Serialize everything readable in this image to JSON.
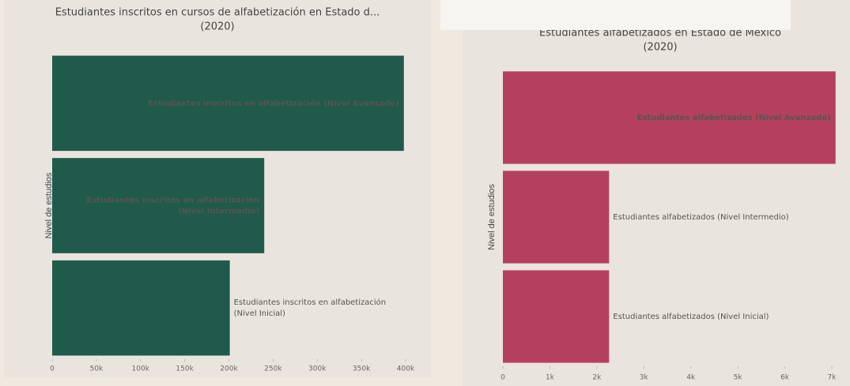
{
  "chart_data": [
    {
      "type": "bar",
      "orientation": "horizontal",
      "title": "Estudiantes inscritos en cursos de alfabetización en Estado d...",
      "subtitle": "(2020)",
      "ylabel": "Nivel de estudios",
      "categories": [
        "Estudiantes inscritos en alfabetización (Nivel Avanzado)",
        "Estudiantes inscritos en alfabetización (Nivel Intermedio)",
        "Estudiantes inscritos en alfabetización (Nivel Inicial)"
      ],
      "values": [
        398000,
        240000,
        201000
      ],
      "color": "#1f5a4a",
      "xlim": [
        0,
        400000
      ],
      "xticks": [
        0,
        {
          "value": 50000,
          "label": "50k"
        },
        {
          "value": 100000,
          "label": "100k"
        },
        {
          "value": 150000,
          "label": "150k"
        },
        {
          "value": 200000,
          "label": "200k"
        },
        {
          "value": 250000,
          "label": "250k"
        },
        {
          "value": 300000,
          "label": "300k"
        },
        {
          "value": 350000,
          "label": "350k"
        },
        {
          "value": 400000,
          "label": "400k"
        }
      ]
    },
    {
      "type": "bar",
      "orientation": "horizontal",
      "title": "Estudiantes alfabetizados en Estado de México",
      "subtitle": "(2020)",
      "ylabel": "Nivel de estudios",
      "categories": [
        "Estudiantes alfabetizados (Nivel Avanzado)",
        "Estudiantes alfabetizados (Nivel Intermedio)",
        "Estudiantes alfabetizados (Nivel Inicial)"
      ],
      "values": [
        7080,
        2260,
        2260
      ],
      "color": "#b5405e",
      "xlim": [
        0,
        7000
      ],
      "xticks": [
        0,
        {
          "value": 1000,
          "label": "1k"
        },
        {
          "value": 2000,
          "label": "2k"
        },
        {
          "value": 3000,
          "label": "3k"
        },
        {
          "value": 4000,
          "label": "4k"
        },
        {
          "value": 5000,
          "label": "5k"
        },
        {
          "value": 6000,
          "label": "6k"
        },
        {
          "value": 7000,
          "label": "7k"
        }
      ]
    }
  ]
}
